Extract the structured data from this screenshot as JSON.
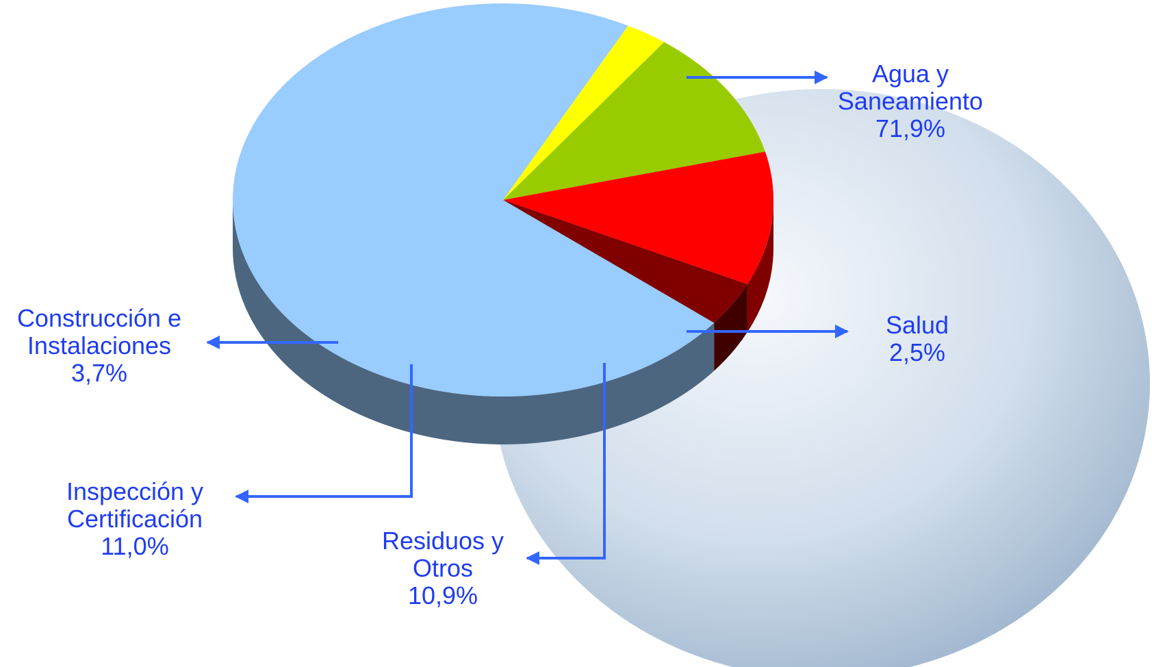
{
  "chart_data": {
    "type": "pie",
    "categories": [
      "Agua y Saneamiento",
      "Salud",
      "Residuos y Otros",
      "Inspección y Certificación",
      "Construcción e Instalaciones"
    ],
    "values": [
      71.9,
      2.5,
      10.9,
      11.0,
      3.7
    ],
    "value_labels": [
      "71,9%",
      "2,5%",
      "10,9%",
      "11,0%",
      "3,7%"
    ],
    "colors": [
      "#99ccff",
      "#ffff00",
      "#99cc00",
      "#ff0000",
      "#800000"
    ]
  }
}
